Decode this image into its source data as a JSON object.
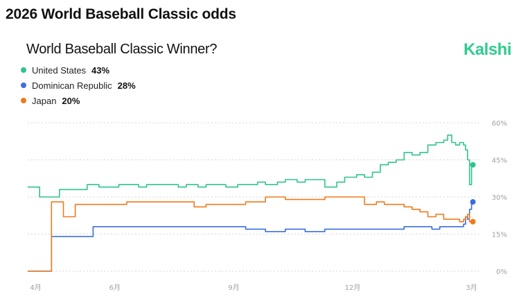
{
  "page": {
    "heading": "2026 World Baseball Classic odds"
  },
  "brand": {
    "name": "Kalshi",
    "color": "#2ecc8f"
  },
  "chart_data": {
    "type": "line",
    "title": "World Baseball Classic Winner?",
    "xlabel": "",
    "ylabel": "",
    "ylim": [
      0,
      60
    ],
    "xlim": [
      0,
      11.4
    ],
    "grid": true,
    "legend_position": "top-left",
    "x_ticks": [
      {
        "value": 0.2,
        "label": "4月"
      },
      {
        "value": 2.2,
        "label": "6月"
      },
      {
        "value": 5.2,
        "label": "9月"
      },
      {
        "value": 8.2,
        "label": "12月"
      },
      {
        "value": 11.2,
        "label": "3月"
      }
    ],
    "y_ticks": [
      {
        "value": 0,
        "label": "0%"
      },
      {
        "value": 15,
        "label": "15%"
      },
      {
        "value": 30,
        "label": "30%"
      },
      {
        "value": 45,
        "label": "45%"
      },
      {
        "value": 60,
        "label": "60%"
      }
    ],
    "series": [
      {
        "name": "United States",
        "label": "43%",
        "current": 43,
        "color": "#2ec48d",
        "x": [
          0.0,
          0.25,
          0.3,
          0.7,
          0.8,
          1.2,
          1.5,
          1.8,
          2.0,
          2.3,
          2.5,
          2.8,
          3.0,
          3.3,
          3.5,
          3.8,
          4.0,
          4.3,
          4.5,
          4.8,
          5.0,
          5.3,
          5.5,
          5.8,
          6.0,
          6.3,
          6.5,
          6.8,
          7.0,
          7.3,
          7.5,
          7.8,
          8.0,
          8.3,
          8.5,
          8.7,
          8.9,
          9.1,
          9.3,
          9.5,
          9.7,
          9.9,
          10.1,
          10.3,
          10.5,
          10.6,
          10.7,
          10.8,
          10.9,
          11.0,
          11.05,
          11.1,
          11.15,
          11.2
        ],
        "values": [
          34,
          34,
          30,
          30,
          33,
          33,
          35,
          34,
          34,
          35,
          35,
          34,
          35,
          35,
          35,
          34,
          35,
          34,
          35,
          35,
          34,
          35,
          35,
          36,
          35,
          36,
          37,
          36,
          37,
          37,
          34,
          36,
          38,
          39,
          38,
          40,
          43,
          44,
          45,
          48,
          47,
          48,
          51,
          52,
          53,
          55,
          52,
          51,
          52,
          51,
          49,
          45,
          35,
          43
        ]
      },
      {
        "name": "Dominican Republic",
        "label": "28%",
        "current": 28,
        "color": "#3b6ee0",
        "x": [
          0.0,
          0.55,
          0.6,
          0.7,
          0.8,
          1.5,
          1.65,
          2.5,
          3.5,
          4.5,
          5.5,
          6.0,
          6.5,
          7.0,
          7.5,
          8.0,
          8.5,
          9.0,
          9.5,
          10.0,
          10.2,
          10.4,
          10.6,
          10.8,
          11.0,
          11.05,
          11.1,
          11.15,
          11.2
        ],
        "values": [
          0,
          0,
          14,
          14,
          14,
          14,
          18,
          18,
          18,
          18,
          17,
          16,
          17,
          16,
          17,
          17,
          17,
          17,
          18,
          18,
          17,
          18,
          18,
          18,
          19,
          22,
          21,
          25,
          28
        ]
      },
      {
        "name": "Japan",
        "label": "20%",
        "current": 20,
        "color": "#f07a1a",
        "x": [
          0.0,
          0.55,
          0.6,
          0.8,
          0.9,
          1.1,
          1.2,
          2.0,
          2.5,
          3.0,
          3.5,
          4.0,
          4.2,
          4.5,
          5.0,
          5.5,
          6.0,
          6.5,
          7.0,
          7.5,
          8.0,
          8.3,
          8.5,
          8.8,
          9.0,
          9.3,
          9.5,
          9.7,
          9.9,
          10.1,
          10.3,
          10.5,
          10.7,
          10.9,
          11.0,
          11.05,
          11.1,
          11.15,
          11.2
        ],
        "values": [
          0,
          0,
          28,
          28,
          22,
          22,
          27,
          27,
          28,
          28,
          28,
          28,
          26,
          27,
          27,
          28,
          30,
          29,
          29,
          30,
          30,
          30,
          27,
          28,
          27,
          27,
          26,
          25,
          24,
          22,
          23,
          21,
          21,
          20,
          21,
          22,
          23,
          20,
          20
        ]
      }
    ]
  }
}
